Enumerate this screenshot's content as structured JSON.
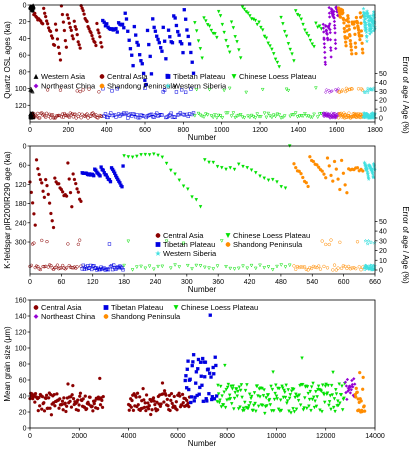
{
  "colors": {
    "Western Asia": "#000000",
    "Central Asia": "#8b0000",
    "Tibetan Plateau": "#0000e0",
    "Chinese Loess Plateau": "#00e000",
    "Northeast China": "#9400d3",
    "Shandong Peninsula": "#ff8c00",
    "Western Siberia": "#40e0e0"
  },
  "chart_data": [
    {
      "type": "scatter",
      "panel": "top",
      "xlabel": "Number",
      "ylabel": "Quartz OSL ages (ka)",
      "ylabel_right": "Error of age / Age (%)",
      "xlim": [
        0,
        1800
      ],
      "ylim": [
        0,
        140
      ],
      "y_inverted": true,
      "y2lim": [
        0,
        140
      ],
      "x_ticks": [
        "0",
        "200",
        "400",
        "600",
        "800",
        "1000",
        "1200",
        "1400",
        "1600",
        "1800"
      ],
      "y_ticks": [
        "0",
        "20",
        "40",
        "60",
        "80",
        "100",
        "120"
      ],
      "y2_ticks": [
        "0",
        "10",
        "20",
        "30",
        "40",
        "50"
      ],
      "legend": [
        "Western Asia",
        "Central Asia",
        "Tibetan Plateau",
        "Chinese Loess Plateau",
        "Northeast China",
        "Shandong Peninsula",
        "Western Siberia"
      ],
      "legend_placement": "bottom-left",
      "series": [
        {
          "name": "Western Asia",
          "marker": "triangle-up",
          "x_range": [
            0,
            20
          ],
          "y_range": [
            0,
            8
          ]
        },
        {
          "name": "Central Asia",
          "marker": "circle",
          "x_range": [
            20,
            380
          ],
          "y_range": [
            0,
            80
          ]
        },
        {
          "name": "Tibetan Plateau",
          "marker": "square",
          "x_range": [
            380,
            860
          ],
          "y_range": [
            0,
            115
          ]
        },
        {
          "name": "Chinese Loess Plateau",
          "marker": "triangle-down",
          "x_range": [
            860,
            1530
          ],
          "y_range": [
            0,
            85
          ]
        },
        {
          "name": "Northeast China",
          "marker": "diamond",
          "x_range": [
            1530,
            1610
          ],
          "y_range": [
            0,
            95
          ]
        },
        {
          "name": "Shandong Peninsula",
          "marker": "circle",
          "x_range": [
            1610,
            1740
          ],
          "y_range": [
            0,
            75
          ]
        },
        {
          "name": "Western Siberia",
          "marker": "star",
          "x_range": [
            1740,
            1800
          ],
          "y_range": [
            0,
            55
          ]
        }
      ]
    },
    {
      "type": "scatter",
      "panel": "middle",
      "xlabel": "Number",
      "ylabel": "K-feldspar pIR200IR290 age (ka)",
      "ylabel_right": "Error of age / Age (%)",
      "xlim": [
        0,
        660
      ],
      "ylim": [
        0,
        400
      ],
      "y_inverted": true,
      "x_ticks": [
        "0",
        "60",
        "120",
        "180",
        "240",
        "300",
        "360",
        "420",
        "480",
        "540",
        "600",
        "660"
      ],
      "y_ticks": [
        "0",
        "60",
        "120",
        "180",
        "240",
        "300"
      ],
      "y2_ticks": [
        "0",
        "10",
        "20",
        "30",
        "40",
        "50"
      ],
      "legend": [
        "Central Asia",
        "Chinese Loess Plateau",
        "Tibetan Plateau",
        "Shandong Peninsula",
        "Western Siberia"
      ],
      "legend_placement": "bottom-center",
      "series": [
        {
          "name": "Central Asia",
          "marker": "circle",
          "x_range": [
            0,
            100
          ],
          "y_range": [
            40,
            290
          ]
        },
        {
          "name": "Tibetan Plateau",
          "marker": "square",
          "x_range": [
            100,
            180
          ],
          "y_range": [
            60,
            150
          ]
        },
        {
          "name": "Chinese Loess Plateau",
          "marker": "triangle-down",
          "x_range": [
            180,
            505
          ],
          "y_range": [
            0,
            260
          ]
        },
        {
          "name": "Shandong Peninsula",
          "marker": "circle",
          "x_range": [
            505,
            640
          ],
          "y_range": [
            20,
            240
          ]
        },
        {
          "name": "Western Siberia",
          "marker": "star",
          "x_range": [
            640,
            660
          ],
          "y_range": [
            50,
            130
          ]
        }
      ]
    },
    {
      "type": "scatter",
      "panel": "bottom",
      "xlabel": "Number",
      "ylabel": "Mean grain size (μm)",
      "xlim": [
        0,
        14000
      ],
      "ylim": [
        0,
        160
      ],
      "x_ticks": [
        "0",
        "2000",
        "4000",
        "6000",
        "8000",
        "10000",
        "12000",
        "14000"
      ],
      "y_ticks": [
        "0",
        "20",
        "40",
        "60",
        "80",
        "100",
        "120",
        "140",
        "160"
      ],
      "legend": [
        "Central Asia",
        "Tibetan Plateau",
        "Chinese Loess Plateau",
        "Northeast China",
        "Shandong Peninsula"
      ],
      "legend_placement": "top-left",
      "series": [
        {
          "name": "Central Asia",
          "marker": "circle",
          "segments": [
            {
              "x_range": [
                0,
                3000
              ],
              "y_range": [
                15,
                65
              ]
            },
            {
              "x_range": [
                4000,
                6500
              ],
              "y_range": [
                15,
                65
              ]
            }
          ]
        },
        {
          "name": "Tibetan Plateau",
          "marker": "square",
          "x_range": [
            6300,
            7600
          ],
          "y_range": [
            15,
            150
          ]
        },
        {
          "name": "Chinese Loess Plateau",
          "marker": "triangle-down",
          "x_range": [
            7600,
            12800
          ],
          "y_range": [
            10,
            90
          ]
        },
        {
          "name": "Northeast China",
          "marker": "diamond",
          "x_range": [
            12800,
            13200
          ],
          "y_range": [
            25,
            90
          ]
        },
        {
          "name": "Shandong Peninsula",
          "marker": "circle",
          "x_range": [
            13200,
            13600
          ],
          "y_range": [
            10,
            80
          ]
        }
      ]
    }
  ]
}
